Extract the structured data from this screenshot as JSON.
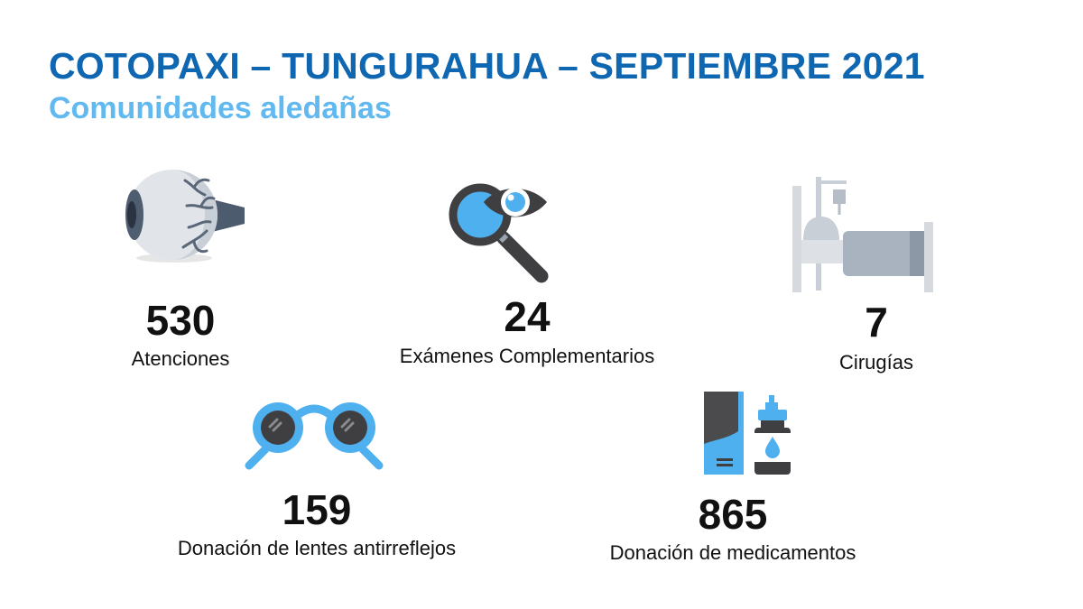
{
  "header": {
    "title": "COTOPAXI – TUNGURAHUA – SEPTIEMBRE 2021",
    "subtitle": "Comunidades aledañas"
  },
  "colors": {
    "title": "#0e67b0",
    "subtitle": "#62b9f0",
    "accent_blue": "#4fb0f0",
    "dark_gray": "#3f3f41"
  },
  "stats": [
    {
      "icon": "eyeball-icon",
      "value": "530",
      "label": "Atenciones"
    },
    {
      "icon": "magnifier-eye-icon",
      "value": "24",
      "label": "Exámenes Complementarios"
    },
    {
      "icon": "hospital-bed-icon",
      "value": "7",
      "label": "Cirugías"
    },
    {
      "icon": "glasses-icon",
      "value": "159",
      "label": "Donación de lentes antirreflejos"
    },
    {
      "icon": "medicine-icon",
      "value": "865",
      "label": "Donación de medicamentos"
    }
  ]
}
